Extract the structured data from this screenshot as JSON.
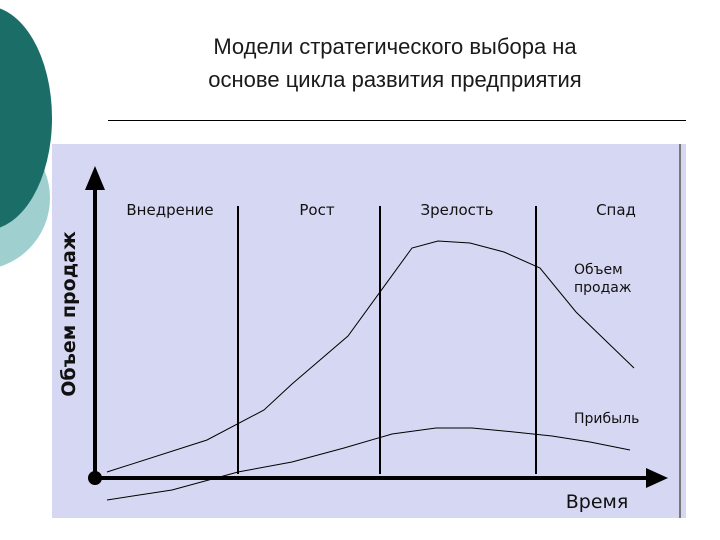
{
  "slide": {
    "title_line1": "Модели стратегического выбора на",
    "title_line2": "основе цикла развития предприятия"
  },
  "diagram": {
    "background_color": "#d6d7f2",
    "stages": [
      "Внедрение",
      "Рост",
      "Зрелость",
      "Спад"
    ],
    "y_axis_label": "Объем продаж",
    "x_axis_label": "Время",
    "curves": [
      {
        "label_line1": "Объем",
        "label_line2": "продаж"
      },
      {
        "label_line1": "Прибыль"
      }
    ]
  },
  "theme": {
    "dark_teal": "#1b6d68",
    "light_teal": "#9fcfcf"
  }
}
